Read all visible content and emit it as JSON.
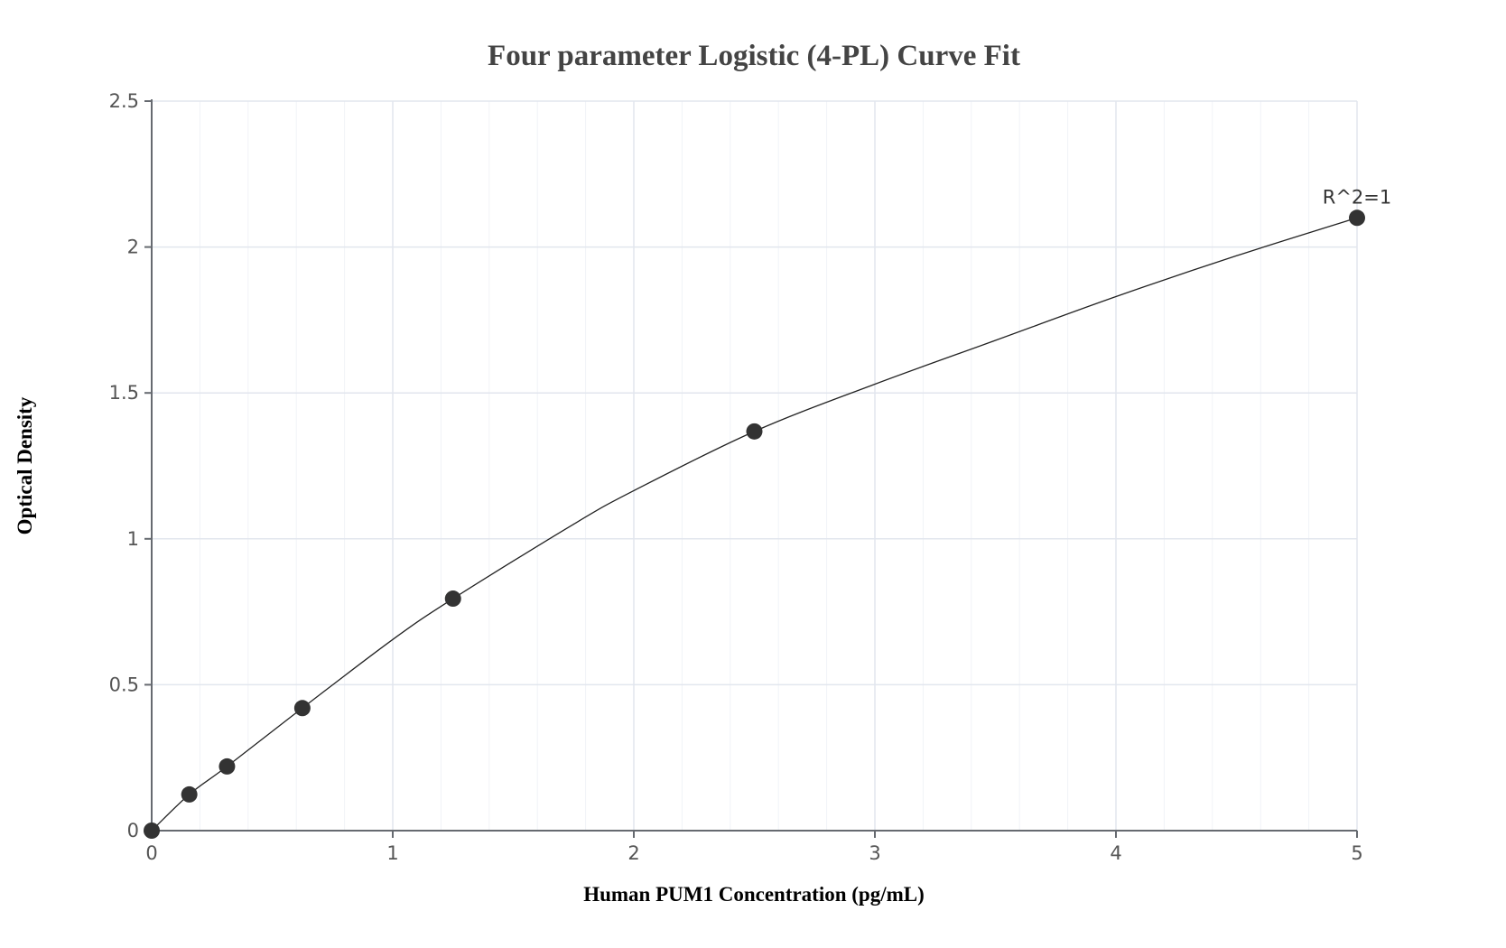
{
  "chart_data": {
    "type": "scatter",
    "title": "Four parameter Logistic (4-PL) Curve Fit",
    "xlabel": "Human PUM1 Concentration (pg/mL)",
    "ylabel": "Optical Density",
    "xlim": [
      0,
      5
    ],
    "ylim": [
      0,
      2.5
    ],
    "x_ticks": [
      "0",
      "1",
      "2",
      "3",
      "4",
      "5"
    ],
    "y_ticks": [
      "0",
      "0.5",
      "1",
      "1.5",
      "2",
      "2.5"
    ],
    "grid": true,
    "legend": "none",
    "series": [
      {
        "name": "Standard points",
        "x": [
          0,
          0.156,
          0.3125,
          0.625,
          1.25,
          2.5,
          5
        ],
        "y": [
          0,
          0.124,
          0.22,
          0.42,
          0.795,
          1.368,
          2.1
        ]
      }
    ],
    "fit_curve": {
      "name": "4-PL fit",
      "x": [
        0,
        0.156,
        0.3125,
        0.625,
        1.0,
        1.25,
        1.75,
        2.0,
        2.5,
        3.0,
        3.5,
        4.0,
        4.5,
        5.0
      ],
      "y": [
        0,
        0.124,
        0.22,
        0.42,
        0.655,
        0.795,
        1.05,
        1.165,
        1.368,
        1.53,
        1.68,
        1.83,
        1.97,
        2.1
      ]
    },
    "annotations": [
      {
        "text": "R^2=1",
        "x": 5,
        "y": 2.1
      }
    ]
  }
}
